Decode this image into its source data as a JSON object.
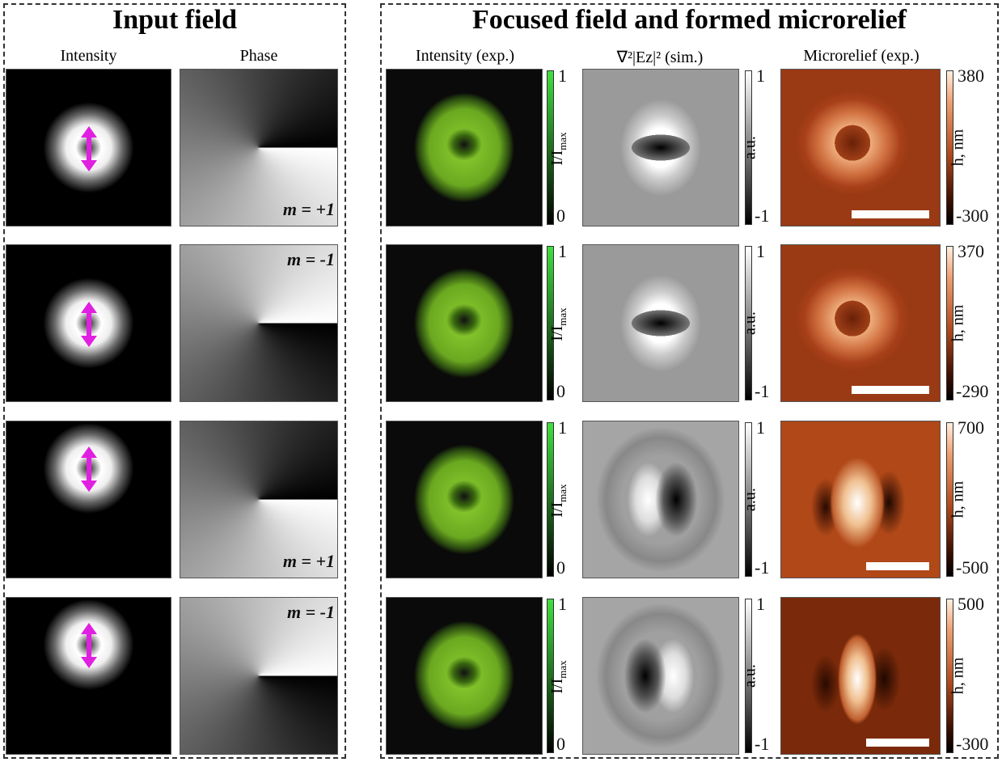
{
  "left_panel": {
    "title": "Input field",
    "columns": [
      "Intensity",
      "Phase"
    ],
    "rows": [
      {
        "m_label": "m = +1"
      },
      {
        "m_label": "m = -1"
      },
      {
        "m_label": "m = +1"
      },
      {
        "m_label": "m = -1"
      }
    ]
  },
  "right_panel": {
    "title": "Focused field and formed microrelief",
    "columns": [
      "Intensity (exp.)",
      "∇²|Eᴢ|² (sim.)",
      "Microrelief (exp.)"
    ],
    "rows": [
      {
        "intensity_bar": {
          "max": "1",
          "min": "0",
          "label": "I/I",
          "label_sub": "max"
        },
        "sim_bar": {
          "max": "1",
          "min": "-1",
          "label": "a.u."
        },
        "relief_bar": {
          "max": "380",
          "min": "-300",
          "label": "h, nm"
        }
      },
      {
        "intensity_bar": {
          "max": "1",
          "min": "0",
          "label": "I/I",
          "label_sub": "max"
        },
        "sim_bar": {
          "max": "1",
          "min": "-1",
          "label": "a.u."
        },
        "relief_bar": {
          "max": "370",
          "min": "-290",
          "label": "h, nm"
        }
      },
      {
        "intensity_bar": {
          "max": "1",
          "min": "0",
          "label": "I/I",
          "label_sub": "max"
        },
        "sim_bar": {
          "max": "1",
          "min": "-1",
          "label": "a.u."
        },
        "relief_bar": {
          "max": "700",
          "min": "-500",
          "label": "h, nm"
        }
      },
      {
        "intensity_bar": {
          "max": "1",
          "min": "0",
          "label": "I/I",
          "label_sub": "max"
        },
        "sim_bar": {
          "max": "1",
          "min": "-1",
          "label": "a.u."
        },
        "relief_bar": {
          "max": "500",
          "min": "-300",
          "label": "h, nm"
        }
      }
    ]
  }
}
